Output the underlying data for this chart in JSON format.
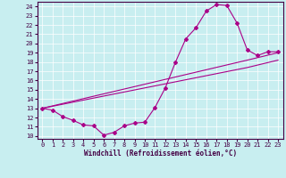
{
  "xlabel": "Windchill (Refroidissement éolien,°C)",
  "bg_color": "#c8eef0",
  "line_color": "#aa0088",
  "xlim": [
    -0.5,
    23.5
  ],
  "ylim": [
    9.7,
    24.5
  ],
  "xticks": [
    0,
    1,
    2,
    3,
    4,
    5,
    6,
    7,
    8,
    9,
    10,
    11,
    12,
    13,
    14,
    15,
    16,
    17,
    18,
    19,
    20,
    21,
    22,
    23
  ],
  "yticks": [
    10,
    11,
    12,
    13,
    14,
    15,
    16,
    17,
    18,
    19,
    20,
    21,
    22,
    23,
    24
  ],
  "curve_x": [
    0,
    1,
    2,
    3,
    4,
    5,
    6,
    7,
    8,
    9,
    10,
    11,
    12,
    13,
    14,
    15,
    16,
    17,
    18,
    19,
    20,
    21,
    22,
    23
  ],
  "curve_y": [
    13,
    12.8,
    12.1,
    11.7,
    11.2,
    11.1,
    10.1,
    10.4,
    11.1,
    11.4,
    11.5,
    13.1,
    15.2,
    18.0,
    20.5,
    21.7,
    23.5,
    24.2,
    24.1,
    22.2,
    19.3,
    18.7,
    19.1,
    19.1
  ],
  "diag1_x": [
    0,
    5,
    10,
    15,
    20,
    23
  ],
  "diag1_y": [
    13.0,
    14.1,
    15.2,
    16.3,
    17.4,
    18.2
  ],
  "diag2_x": [
    0,
    5,
    10,
    15,
    20,
    23
  ],
  "diag2_y": [
    13.0,
    14.3,
    15.6,
    16.9,
    18.2,
    19.0
  ],
  "tick_fontsize": 5,
  "xlabel_fontsize": 5.5,
  "grid_color": "#ffffff",
  "spine_color": "#440044",
  "tick_color": "#440044"
}
